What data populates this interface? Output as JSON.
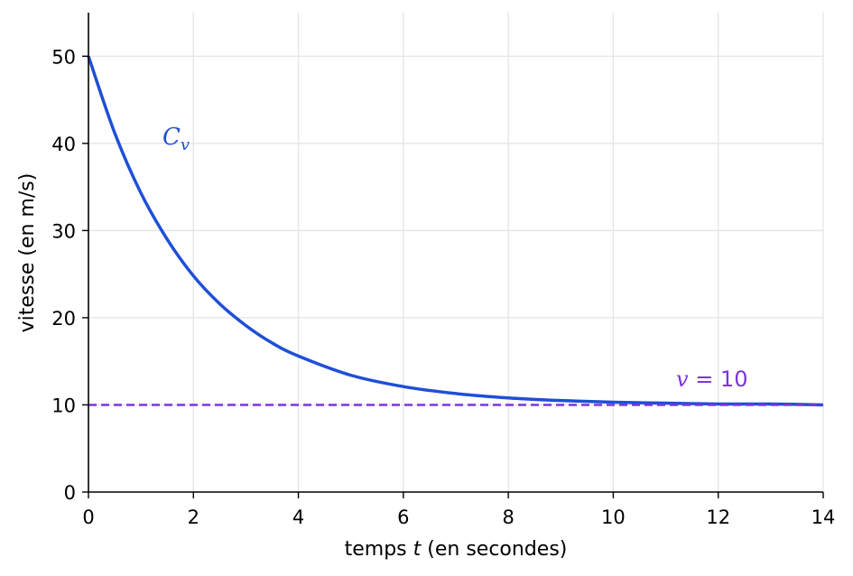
{
  "chart_data": {
    "type": "line",
    "xlabel_prefix": "temps ",
    "xlabel_var": "t",
    "xlabel_suffix": " (en secondes)",
    "ylabel": "vitesse (en m/s)",
    "xlim": [
      0,
      14
    ],
    "ylim": [
      0,
      55
    ],
    "x_ticks": [
      0,
      2,
      4,
      6,
      8,
      10,
      12,
      14
    ],
    "y_ticks": [
      0,
      10,
      20,
      30,
      40,
      50
    ],
    "grid": true,
    "series": [
      {
        "name": "C_v",
        "color": "#1f4fd6",
        "x": [
          0,
          0.5,
          1,
          1.5,
          2,
          2.5,
          3,
          3.5,
          4,
          5,
          6,
          7,
          8,
          9,
          10,
          11,
          12,
          13,
          14
        ],
        "y": [
          50,
          41.2,
          34.3,
          29.0,
          24.8,
          21.6,
          19.1,
          17.1,
          15.6,
          13.4,
          12.1,
          11.3,
          10.8,
          10.5,
          10.3,
          10.2,
          10.1,
          10.1,
          10.0
        ]
      },
      {
        "name": "v = 10",
        "color": "#7b35e0",
        "style": "dashed",
        "x": [
          0,
          14
        ],
        "y": [
          10,
          10
        ]
      }
    ],
    "annotations": {
      "curve_label_main": "C",
      "curve_label_sub": "v",
      "asymptote_label_var": "v",
      "asymptote_label_rest": " = 10"
    }
  }
}
